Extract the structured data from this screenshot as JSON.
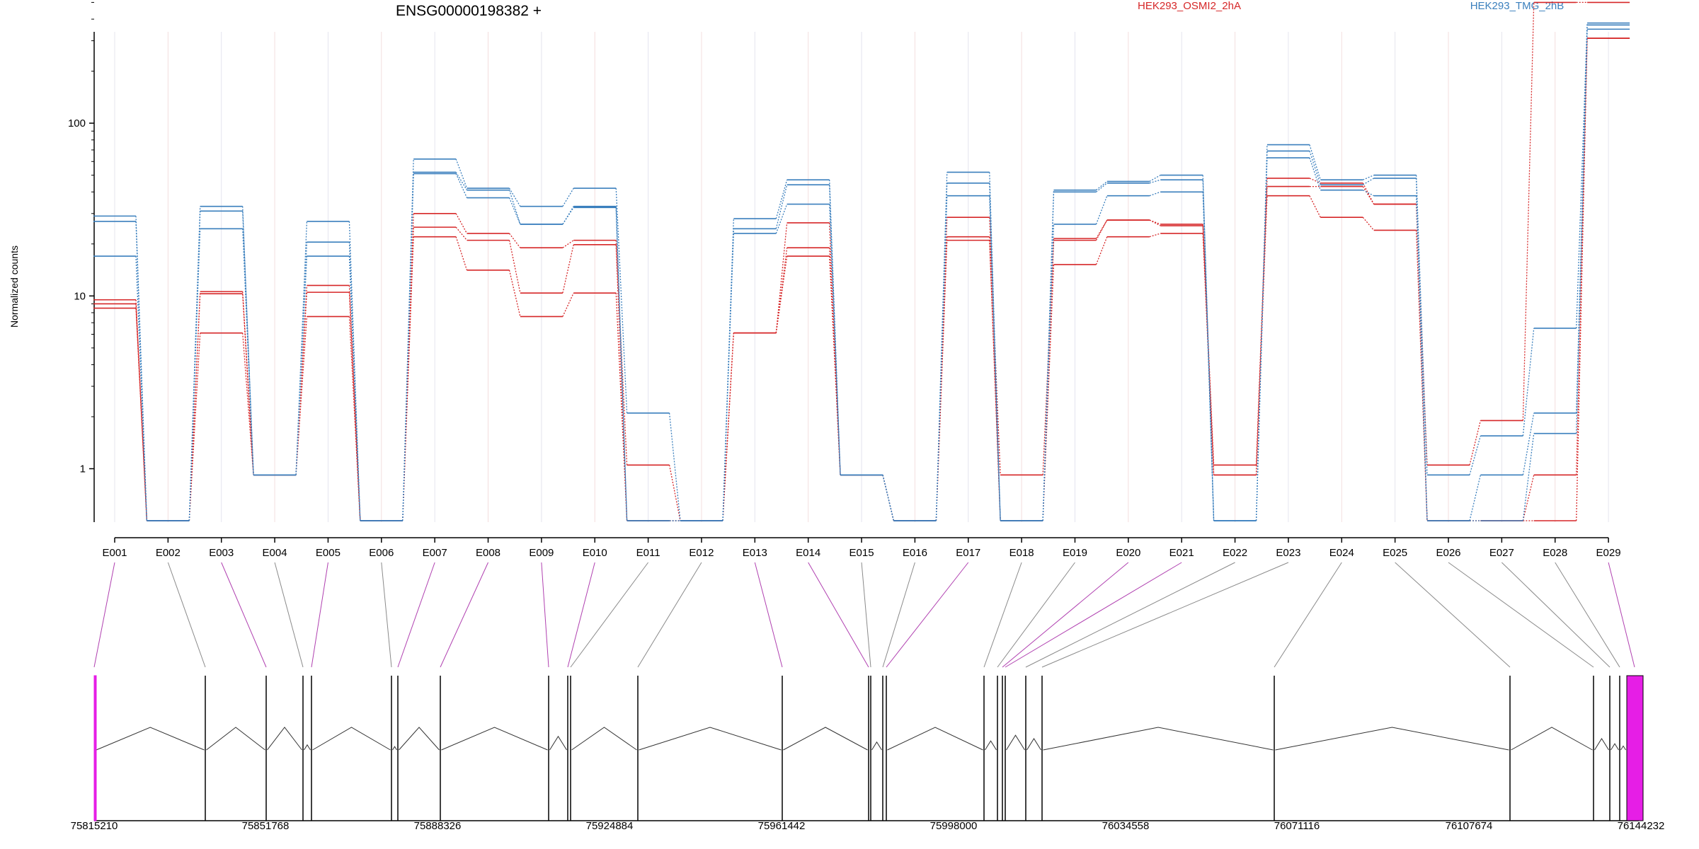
{
  "chart_data": {
    "type": "line",
    "title": "ENSG00000198382 +",
    "ylabel": "Normalized counts",
    "yscale": "log",
    "ylim": [
      0.5,
      700
    ],
    "yticks": [
      1,
      10,
      100
    ],
    "ytick_labels": [
      "1",
      "10",
      "100"
    ],
    "legend": [
      {
        "name": "HEK293_OSMI2_2hA",
        "color": "#d62728"
      },
      {
        "name": "HEK293_TMG_2hB",
        "color": "#3a7fbd"
      }
    ],
    "exons": [
      "E001",
      "E002",
      "E003",
      "E004",
      "E005",
      "E006",
      "E007",
      "E008",
      "E009",
      "E010",
      "E011",
      "E012",
      "E013",
      "E014",
      "E015",
      "E016",
      "E017",
      "E018",
      "E019",
      "E020",
      "E021",
      "E022",
      "E023",
      "E024",
      "E025",
      "E026",
      "E027",
      "E028",
      "E029"
    ],
    "series": [
      {
        "group": "HEK293_OSMI2_2hA",
        "values": [
          9.5,
          0.5,
          10.6,
          0.92,
          11.5,
          0.5,
          30,
          23,
          19,
          21,
          1.05,
          0.5,
          6.1,
          26.5,
          0.92,
          0.5,
          28.5,
          0.92,
          21.5,
          27.5,
          26,
          1.05,
          48,
          45,
          34,
          1.05,
          1.9,
          500,
          500
        ]
      },
      {
        "group": "HEK293_OSMI2_2hA",
        "values": [
          9.0,
          0.5,
          10.3,
          0.92,
          10.5,
          0.5,
          25,
          21,
          10.4,
          19.8,
          0.5,
          0.5,
          6.1,
          19,
          0.92,
          0.5,
          22,
          0.5,
          21,
          27.5,
          25.5,
          0.92,
          43,
          43,
          34,
          0.5,
          0.5,
          0.92,
          310
        ]
      },
      {
        "group": "HEK293_OSMI2_2hA",
        "values": [
          8.5,
          0.5,
          6.1,
          0.92,
          7.6,
          0.5,
          22,
          14.1,
          7.6,
          10.4,
          0.5,
          0.5,
          6.1,
          17,
          0.92,
          0.5,
          21,
          0.5,
          15.2,
          22,
          23,
          0.92,
          38,
          28.5,
          24,
          0.5,
          0.5,
          0.5,
          310
        ]
      },
      {
        "group": "HEK293_TMG_2hB",
        "values": [
          29,
          0.5,
          33,
          0.92,
          27,
          0.5,
          62,
          42,
          33,
          42,
          2.1,
          0.5,
          28,
          47,
          0.92,
          0.5,
          52,
          0.5,
          41,
          46,
          50,
          0.5,
          75,
          47,
          50,
          0.92,
          1.55,
          6.5,
          380
        ]
      },
      {
        "group": "HEK293_TMG_2hB",
        "values": [
          27,
          0.5,
          31,
          0.92,
          20.5,
          0.5,
          52,
          41,
          26,
          33,
          0.5,
          0.5,
          24.5,
          44,
          0.92,
          0.5,
          45,
          0.5,
          40,
          45,
          47,
          0.5,
          69,
          44,
          48,
          0.5,
          0.92,
          2.1,
          370
        ]
      },
      {
        "group": "HEK293_TMG_2hB",
        "values": [
          17,
          0.5,
          24.5,
          0.92,
          17,
          0.5,
          51,
          37,
          26,
          32.5,
          0.5,
          0.5,
          23,
          34,
          0.92,
          0.5,
          38,
          0.5,
          26,
          38,
          40,
          0.5,
          63,
          41,
          38,
          0.5,
          0.5,
          1.6,
          350
        ]
      }
    ],
    "gene_model": {
      "coordinate_labels": [
        "75815210",
        "75851768",
        "75888326",
        "75924884",
        "75961442",
        "75998000",
        "76034558",
        "76071116",
        "76107674",
        "76144232"
      ],
      "highlight_color": "#e61ee6",
      "highlighted_exons": [
        "E001",
        "E029"
      ]
    }
  }
}
